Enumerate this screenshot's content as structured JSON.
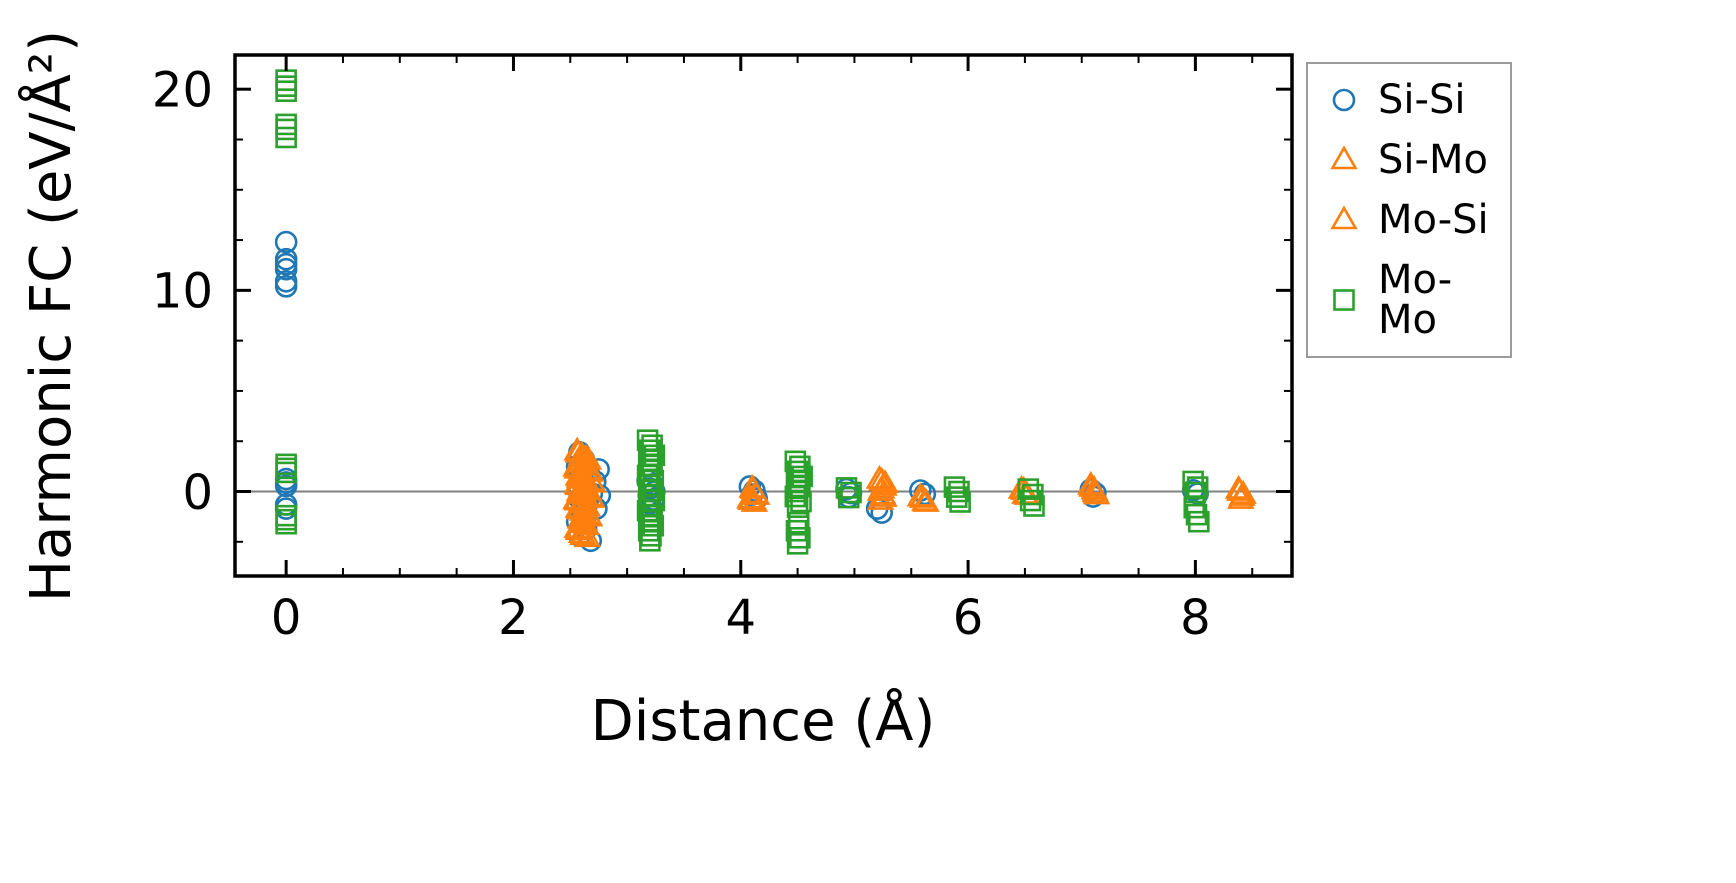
{
  "figure": {
    "background": "#ffffff"
  },
  "chart_data": {
    "type": "scatter",
    "title": "",
    "xlabel": "Distance (Å)",
    "ylabel": "Harmonic FC (eV/Å²)",
    "xlim": [
      -0.45,
      8.85
    ],
    "ylim": [
      -4.2,
      21.7
    ],
    "xticks": [
      0,
      2,
      4,
      6,
      8
    ],
    "yticks": [
      0,
      10,
      20
    ],
    "x_minor_step": 0.5,
    "y_minor_step": 2.5,
    "zero_line_y": 0,
    "grid": false,
    "legend_position": "outside upper right",
    "colors": {
      "frame": "#000000",
      "zero_line": "#808080"
    },
    "series": [
      {
        "name": "Si-Si",
        "marker": "circle",
        "color": "#1f77b4",
        "points": [
          [
            0,
            12.4
          ],
          [
            0,
            11.55
          ],
          [
            0,
            11.3
          ],
          [
            0,
            11.05
          ],
          [
            0,
            10.45
          ],
          [
            0,
            10.2
          ],
          [
            0,
            0.62
          ],
          [
            0,
            0.45
          ],
          [
            0,
            0.28
          ],
          [
            0,
            -0.65
          ],
          [
            0,
            -0.85
          ],
          [
            2.58,
            1.95
          ],
          [
            2.62,
            1.6
          ],
          [
            2.56,
            1.25
          ],
          [
            2.66,
            0.95
          ],
          [
            2.6,
            0.7
          ],
          [
            2.72,
            0.5
          ],
          [
            2.57,
            0.3
          ],
          [
            2.63,
            0.1
          ],
          [
            2.69,
            -0.1
          ],
          [
            2.58,
            -0.35
          ],
          [
            2.65,
            -0.6
          ],
          [
            2.73,
            -0.85
          ],
          [
            2.6,
            -1.15
          ],
          [
            2.56,
            -1.5
          ],
          [
            2.64,
            -1.85
          ],
          [
            2.58,
            -2.2
          ],
          [
            2.68,
            -2.45
          ],
          [
            2.75,
            1.1
          ],
          [
            2.76,
            -0.2
          ],
          [
            3.18,
            0.55
          ],
          [
            3.22,
            0.35
          ],
          [
            3.2,
            0.15
          ],
          [
            3.24,
            0.0
          ],
          [
            3.19,
            -0.2
          ],
          [
            3.23,
            -0.4
          ],
          [
            3.2,
            -0.6
          ],
          [
            4.08,
            0.25
          ],
          [
            4.12,
            0.05
          ],
          [
            4.1,
            -0.15
          ],
          [
            4.14,
            -0.35
          ],
          [
            4.93,
            0.12
          ],
          [
            4.97,
            -0.08
          ],
          [
            4.95,
            -0.28
          ],
          [
            5.2,
            -0.85
          ],
          [
            5.24,
            -1.05
          ],
          [
            5.58,
            0.05
          ],
          [
            5.62,
            -0.12
          ],
          [
            7.08,
            0.1
          ],
          [
            7.12,
            -0.08
          ],
          [
            7.1,
            -0.25
          ],
          [
            7.98,
            0.06
          ],
          [
            8.02,
            -0.1
          ]
        ]
      },
      {
        "name": "Si-Mo",
        "marker": "triangle",
        "color": "#ff7f0e",
        "points": [
          [
            2.56,
            2.0
          ],
          [
            2.6,
            1.8
          ],
          [
            2.64,
            1.65
          ],
          [
            2.58,
            1.5
          ],
          [
            2.62,
            1.35
          ],
          [
            2.55,
            1.2
          ],
          [
            2.67,
            1.05
          ],
          [
            2.6,
            0.9
          ],
          [
            2.57,
            0.75
          ],
          [
            2.63,
            0.6
          ],
          [
            2.69,
            0.48
          ],
          [
            2.56,
            0.35
          ],
          [
            2.61,
            0.22
          ],
          [
            2.65,
            0.1
          ],
          [
            2.58,
            -0.02
          ],
          [
            2.62,
            -0.15
          ],
          [
            2.68,
            -0.28
          ],
          [
            2.55,
            -0.42
          ],
          [
            2.6,
            -0.55
          ],
          [
            2.64,
            -0.7
          ],
          [
            2.57,
            -0.85
          ],
          [
            2.61,
            -1.0
          ],
          [
            2.66,
            -1.18
          ],
          [
            2.59,
            -1.38
          ],
          [
            2.63,
            -1.6
          ],
          [
            2.56,
            -1.85
          ],
          [
            2.6,
            -2.1
          ],
          [
            2.65,
            -2.3
          ],
          [
            4.1,
            0.15
          ],
          [
            4.13,
            -0.12
          ],
          [
            4.08,
            -0.38
          ],
          [
            4.12,
            -0.55
          ],
          [
            5.22,
            0.6
          ],
          [
            5.27,
            0.38
          ],
          [
            5.24,
            0.12
          ],
          [
            5.25,
            -0.18
          ],
          [
            5.23,
            -0.45
          ],
          [
            5.58,
            -0.28
          ],
          [
            5.62,
            -0.5
          ],
          [
            6.47,
            0.1
          ],
          [
            6.5,
            -0.15
          ],
          [
            7.08,
            0.3
          ],
          [
            7.11,
            0.08
          ],
          [
            7.13,
            -0.18
          ],
          [
            8.38,
            0.1
          ],
          [
            8.42,
            -0.15
          ],
          [
            8.4,
            -0.4
          ]
        ]
      },
      {
        "name": "Mo-Si",
        "marker": "triangle",
        "color": "#ff7f0e",
        "points": [
          [
            2.57,
            1.9
          ],
          [
            2.61,
            1.7
          ],
          [
            2.66,
            1.55
          ],
          [
            2.59,
            1.4
          ],
          [
            2.63,
            1.25
          ],
          [
            2.56,
            1.1
          ],
          [
            2.68,
            0.95
          ],
          [
            2.6,
            0.8
          ],
          [
            2.58,
            0.65
          ],
          [
            2.64,
            0.52
          ],
          [
            2.7,
            0.4
          ],
          [
            2.57,
            0.28
          ],
          [
            2.62,
            0.15
          ],
          [
            2.66,
            0.02
          ],
          [
            2.59,
            -0.1
          ],
          [
            2.63,
            -0.22
          ],
          [
            2.69,
            -0.35
          ],
          [
            2.56,
            -0.48
          ],
          [
            2.61,
            -0.62
          ],
          [
            2.65,
            -0.78
          ],
          [
            2.58,
            -0.92
          ],
          [
            2.62,
            -1.1
          ],
          [
            2.67,
            -1.28
          ],
          [
            2.6,
            -1.48
          ],
          [
            2.64,
            -1.7
          ],
          [
            2.57,
            -1.95
          ],
          [
            2.61,
            -2.2
          ],
          [
            4.11,
            0.1
          ],
          [
            4.14,
            -0.2
          ],
          [
            4.09,
            -0.45
          ],
          [
            5.24,
            0.5
          ],
          [
            5.26,
            0.25
          ],
          [
            5.23,
            0.0
          ],
          [
            5.26,
            -0.3
          ],
          [
            5.6,
            -0.35
          ],
          [
            5.63,
            -0.55
          ],
          [
            6.49,
            0.05
          ],
          [
            6.52,
            -0.2
          ],
          [
            7.09,
            0.2
          ],
          [
            7.12,
            -0.05
          ],
          [
            8.39,
            0.0
          ],
          [
            8.41,
            -0.25
          ]
        ]
      },
      {
        "name": "Mo-Mo",
        "marker": "square",
        "color": "#2ca02c",
        "points": [
          [
            0,
            20.45
          ],
          [
            0,
            20.15
          ],
          [
            0,
            19.9
          ],
          [
            0,
            18.25
          ],
          [
            0,
            18.0
          ],
          [
            0,
            17.6
          ],
          [
            0,
            1.35
          ],
          [
            0,
            1.15
          ],
          [
            0,
            0.95
          ],
          [
            0,
            -1.2
          ],
          [
            0,
            -1.4
          ],
          [
            0,
            -1.6
          ],
          [
            3.18,
            2.55
          ],
          [
            3.22,
            2.3
          ],
          [
            3.2,
            2.05
          ],
          [
            3.24,
            1.8
          ],
          [
            3.19,
            1.55
          ],
          [
            3.22,
            1.3
          ],
          [
            3.2,
            1.05
          ],
          [
            3.18,
            0.8
          ],
          [
            3.23,
            0.55
          ],
          [
            3.2,
            0.3
          ],
          [
            3.22,
            0.05
          ],
          [
            3.19,
            -0.2
          ],
          [
            3.24,
            -0.45
          ],
          [
            3.2,
            -0.7
          ],
          [
            3.18,
            -0.95
          ],
          [
            3.22,
            -1.2
          ],
          [
            3.2,
            -1.45
          ],
          [
            3.23,
            -1.7
          ],
          [
            3.19,
            -1.95
          ],
          [
            3.21,
            -2.2
          ],
          [
            3.2,
            -2.45
          ],
          [
            4.48,
            1.5
          ],
          [
            4.52,
            1.25
          ],
          [
            4.5,
            1.0
          ],
          [
            4.54,
            0.75
          ],
          [
            4.49,
            0.5
          ],
          [
            4.52,
            0.25
          ],
          [
            4.5,
            0.0
          ],
          [
            4.48,
            -0.25
          ],
          [
            4.53,
            -0.5
          ],
          [
            4.5,
            -0.78
          ],
          [
            4.51,
            -1.55
          ],
          [
            4.49,
            -1.95
          ],
          [
            4.52,
            -2.3
          ],
          [
            4.5,
            -2.6
          ],
          [
            4.93,
            0.18
          ],
          [
            4.97,
            -0.05
          ],
          [
            4.95,
            -0.3
          ],
          [
            5.88,
            0.22
          ],
          [
            5.92,
            0.0
          ],
          [
            5.9,
            -0.28
          ],
          [
            5.93,
            -0.52
          ],
          [
            6.53,
            0.12
          ],
          [
            6.57,
            -0.15
          ],
          [
            6.55,
            -0.45
          ],
          [
            6.58,
            -0.72
          ],
          [
            7.98,
            0.5
          ],
          [
            8.02,
            0.22
          ],
          [
            8.0,
            -0.05
          ],
          [
            7.99,
            -0.8
          ],
          [
            8.01,
            -1.15
          ],
          [
            8.03,
            -1.5
          ]
        ]
      }
    ]
  }
}
